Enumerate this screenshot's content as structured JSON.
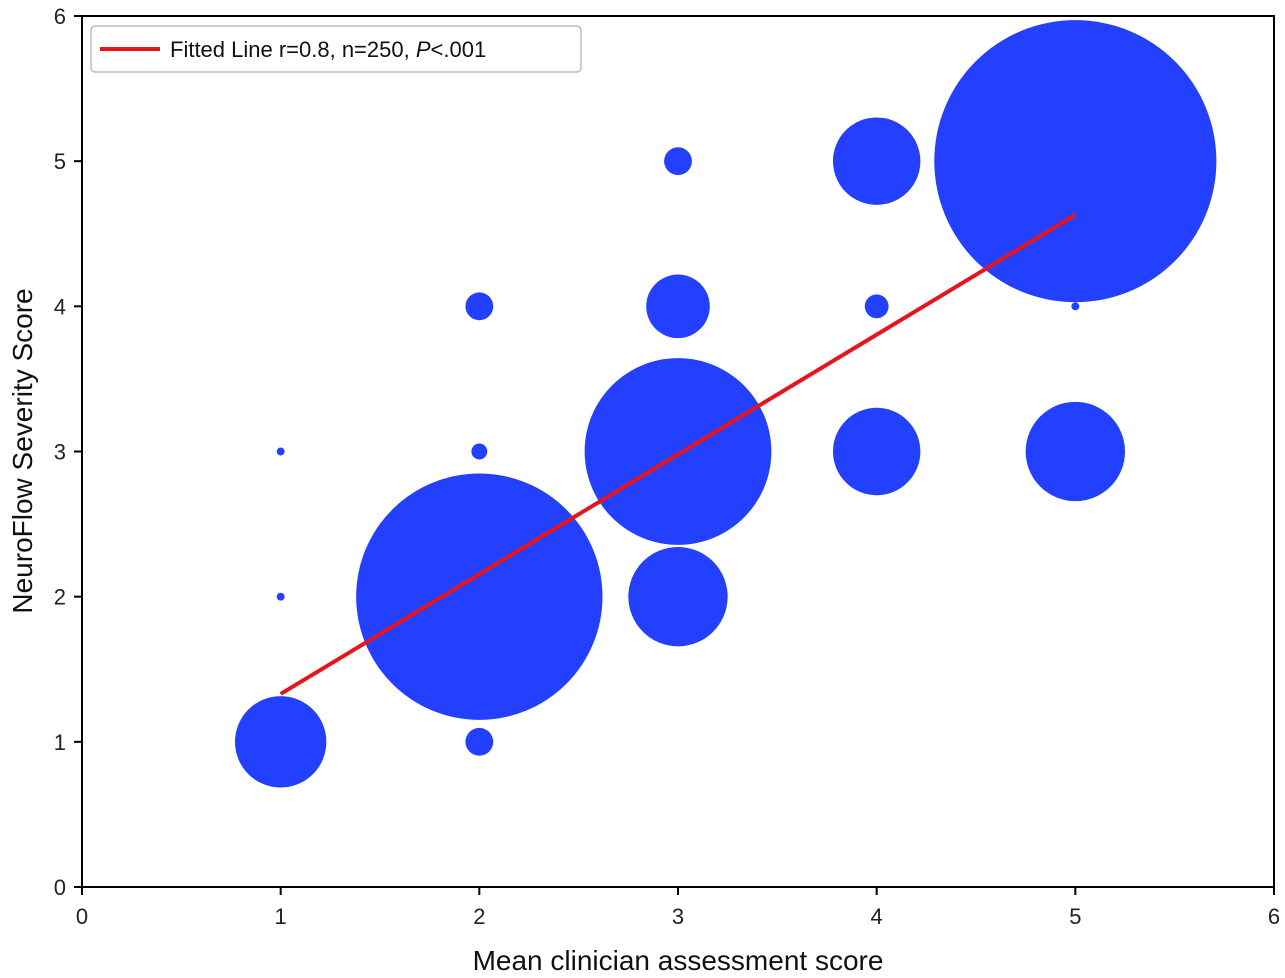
{
  "chart_data": {
    "type": "scatter",
    "xlabel": "Mean clinician assessment score",
    "ylabel": "NeuroFlow Severity Score",
    "xlim": [
      0,
      6
    ],
    "ylim": [
      0,
      6
    ],
    "xticks": [
      0,
      1,
      2,
      3,
      4,
      5,
      6
    ],
    "yticks": [
      0,
      1,
      2,
      3,
      4,
      5,
      6
    ],
    "grid": false,
    "legend_position": "top-left",
    "legend": {
      "text": "Fitted Line r=0.8, n=250, ",
      "italic": "P",
      "suffix": "<.001"
    },
    "points": [
      {
        "x": 1,
        "y": 1,
        "r": 0.23
      },
      {
        "x": 1,
        "y": 2,
        "r": 0.02
      },
      {
        "x": 1,
        "y": 3,
        "r": 0.02
      },
      {
        "x": 2,
        "y": 1,
        "r": 0.07
      },
      {
        "x": 2,
        "y": 2,
        "r": 0.62
      },
      {
        "x": 2,
        "y": 3,
        "r": 0.04
      },
      {
        "x": 2,
        "y": 4,
        "r": 0.07
      },
      {
        "x": 3,
        "y": 2,
        "r": 0.25
      },
      {
        "x": 3,
        "y": 3,
        "r": 0.47
      },
      {
        "x": 3,
        "y": 4,
        "r": 0.16
      },
      {
        "x": 3,
        "y": 5,
        "r": 0.07
      },
      {
        "x": 4,
        "y": 3,
        "r": 0.22
      },
      {
        "x": 4,
        "y": 4,
        "r": 0.06
      },
      {
        "x": 4,
        "y": 5,
        "r": 0.22
      },
      {
        "x": 5,
        "y": 3,
        "r": 0.25
      },
      {
        "x": 5,
        "y": 4,
        "r": 0.02
      },
      {
        "x": 5,
        "y": 5,
        "r": 0.71
      }
    ],
    "fit_line": {
      "x": [
        1,
        5
      ],
      "y": [
        1.33,
        4.63
      ]
    },
    "colors": {
      "points": "#2440ff",
      "fit_line": "#e8141c"
    }
  }
}
